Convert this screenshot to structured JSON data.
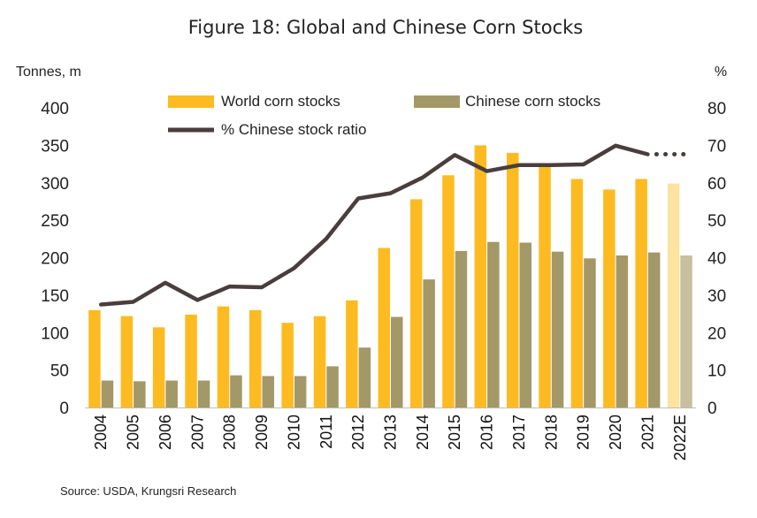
{
  "chart_data": {
    "type": "bar",
    "title": "Figure 18: Global and Chinese Corn Stocks",
    "y_left_unit": "Tonnes, m",
    "y_right_unit": "%",
    "categories": [
      "2004",
      "2005",
      "2006",
      "2007",
      "2008",
      "2009",
      "2010",
      "2011",
      "2012",
      "2013",
      "2014",
      "2015",
      "2016",
      "2017",
      "2018",
      "2019",
      "2020",
      "2021",
      "2022E"
    ],
    "series": [
      {
        "name": "World corn stocks",
        "type": "bar",
        "axis": "left",
        "color": "#fdbb21",
        "estimate_color": "#fde3a0",
        "values": [
          130,
          122,
          107,
          124,
          135,
          130,
          113,
          122,
          143,
          213,
          278,
          310,
          350,
          340,
          322,
          305,
          291,
          305,
          299
        ]
      },
      {
        "name": "Chinese corn stocks",
        "type": "bar",
        "axis": "left",
        "color": "#a39867",
        "estimate_color": "#c7c0a0",
        "values": [
          36,
          35,
          36,
          36,
          43,
          42,
          42,
          55,
          80,
          121,
          171,
          209,
          221,
          220,
          208,
          199,
          203,
          207,
          203
        ]
      },
      {
        "name": "% Chinese stock ratio",
        "type": "line",
        "axis": "right",
        "color": "#4a3d3d",
        "values": [
          27.5,
          28.2,
          33.3,
          28.7,
          32.3,
          32.1,
          37.2,
          45.0,
          55.8,
          57.2,
          61.4,
          67.4,
          63.1,
          64.7,
          64.7,
          64.9,
          69.9,
          67.6,
          67.6
        ],
        "dotted_last_segment": true
      }
    ],
    "y_left_ticks": [
      "0",
      "50",
      "100",
      "150",
      "200",
      "250",
      "300",
      "350",
      "400"
    ],
    "y_right_ticks": [
      "0",
      "10",
      "20",
      "30",
      "40",
      "50",
      "60",
      "70",
      "80"
    ],
    "ylim_left": [
      0,
      400
    ],
    "ylim_right": [
      0,
      80
    ],
    "grid": false,
    "legend_position": "top-left",
    "source": "Source: USDA, Krungsri Research"
  }
}
